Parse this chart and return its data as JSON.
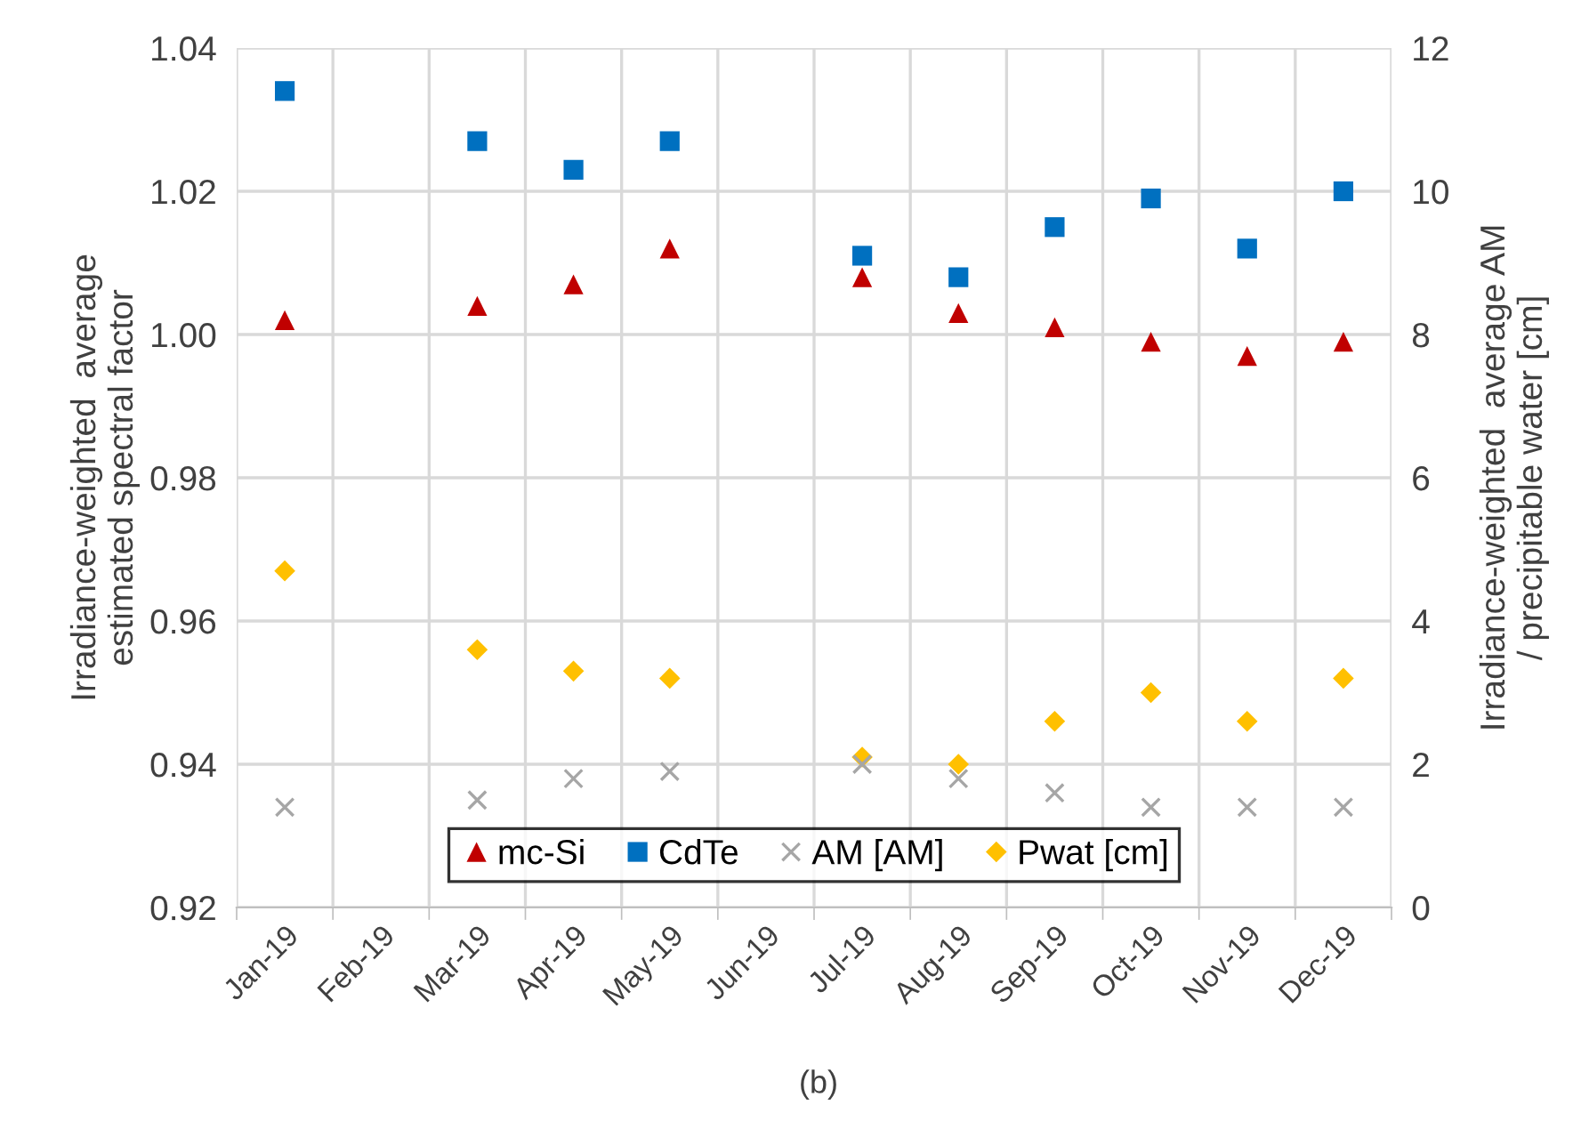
{
  "chart_data": {
    "type": "scatter",
    "xlabel": null,
    "ylabel": "Irradiance-weighted  average\nestimated spectral factor",
    "y2label": "Irradiance-weighted  average AM\n/ precipitable water [cm]",
    "categories": [
      "Jan-19",
      "Feb-19",
      "Mar-19",
      "Apr-19",
      "May-19",
      "Jun-19",
      "Jul-19",
      "Aug-19",
      "Sep-19",
      "Oct-19",
      "Nov-19",
      "Dec-19"
    ],
    "series": [
      {
        "name": "mc-Si",
        "color": "#c00000",
        "marker": "triangle",
        "values": [
          1.002,
          null,
          1.004,
          1.007,
          1.012,
          null,
          1.008,
          1.003,
          1.001,
          0.999,
          0.997,
          0.999
        ]
      },
      {
        "name": "CdTe",
        "color": "#0070c0",
        "marker": "square",
        "values": [
          1.034,
          null,
          1.027,
          1.023,
          1.027,
          null,
          1.011,
          1.008,
          1.015,
          1.019,
          1.012,
          1.02
        ]
      },
      {
        "name": "AM [AM]",
        "color": "#a6a6a6",
        "marker": "cross",
        "axis": "y2",
        "values": [
          1.4,
          null,
          1.5,
          1.8,
          1.9,
          null,
          2.0,
          1.8,
          1.6,
          1.4,
          1.4,
          1.4
        ]
      },
      {
        "name": "Pwat [cm]",
        "color": "#ffc000",
        "marker": "diamond",
        "axis": "y2",
        "values": [
          4.7,
          null,
          3.6,
          3.3,
          3.2,
          null,
          2.1,
          2.0,
          2.6,
          3.0,
          2.6,
          3.2
        ]
      }
    ],
    "ylim": [
      0.92,
      1.04
    ],
    "yticks": [
      0.92,
      0.94,
      0.96,
      0.98,
      {
        "value": 1.0,
        "label": "1.00"
      },
      1.02,
      1.04
    ],
    "y2lim": [
      0,
      12
    ],
    "y2ticks": [
      0,
      2,
      4,
      6,
      8,
      10,
      12
    ],
    "grid": true,
    "legend": "bottom",
    "annotations": [
      "(b)"
    ]
  }
}
